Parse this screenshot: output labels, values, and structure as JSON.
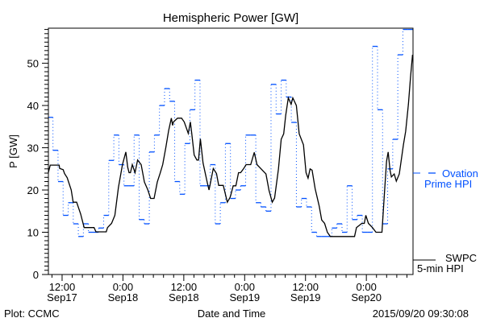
{
  "chart_data": {
    "type": "line",
    "title": "Hemispheric Power [GW]",
    "xlabel": "Date and Time",
    "ylabel": "P [GW]",
    "x_units": "hours since 2015/09/17 00:00",
    "xlim": [
      9.3,
      81.2
    ],
    "ylim": [
      0,
      58.3
    ],
    "yticks": [
      0,
      10,
      20,
      30,
      40,
      50
    ],
    "ytick_labels": [
      "0",
      "10",
      "20",
      "30",
      "40",
      "50"
    ],
    "xticks": [
      {
        "x": 12,
        "time": "12:00",
        "date": "Sep17"
      },
      {
        "x": 24,
        "time": "0:00",
        "date": "Sep18"
      },
      {
        "x": 36,
        "time": "12:00",
        "date": "Sep18"
      },
      {
        "x": 48,
        "time": "0:00",
        "date": "Sep19"
      },
      {
        "x": 60,
        "time": "12:00",
        "date": "Sep19"
      },
      {
        "x": 72,
        "time": "0:00",
        "date": "Sep20"
      }
    ],
    "grid": false,
    "legend_placement": "right-outside",
    "series": [
      {
        "name": "Ovation Prime HPI",
        "legend_line1": "Ovation",
        "legend_line2": "Prime HPI",
        "color": "#0050ff",
        "style": "step-hourly",
        "step_start": 9.2,
        "step_hours": 1,
        "values": [
          37.2,
          29.4,
          22,
          14,
          17,
          12,
          9,
          12,
          10,
          10,
          11,
          14,
          27,
          33,
          26,
          21,
          21,
          33,
          13,
          12,
          29,
          33,
          40,
          44,
          41,
          22,
          19,
          31,
          39,
          46,
          21,
          21,
          26,
          12,
          17,
          31,
          18,
          20,
          21,
          33,
          33,
          17,
          16,
          15,
          45,
          38,
          46,
          42,
          36,
          16,
          18,
          16,
          10,
          9,
          9,
          9,
          11,
          12,
          10,
          21,
          13,
          14,
          10,
          10,
          54,
          39,
          12,
          25,
          32,
          52,
          58,
          58
        ]
      },
      {
        "name": "SWPC 5-min HPI",
        "legend_line1": "SWPC",
        "legend_line2": "5-min HPI",
        "color": "#000000",
        "style": "line",
        "points": [
          [
            9.29,
            24.1
          ],
          [
            9.66,
            25.9
          ],
          [
            11.41,
            25.9
          ],
          [
            11.52,
            25.1
          ],
          [
            12.21,
            24.8
          ],
          [
            12.48,
            23.9
          ],
          [
            13.0,
            22.9
          ],
          [
            13.8,
            20.0
          ],
          [
            14.18,
            17.1
          ],
          [
            14.86,
            17.1
          ],
          [
            15.66,
            14.3
          ],
          [
            16.35,
            11.1
          ],
          [
            18.31,
            11.1
          ],
          [
            18.69,
            10.1
          ],
          [
            20.7,
            10.1
          ],
          [
            20.96,
            11.1
          ],
          [
            21.76,
            12.1
          ],
          [
            22.4,
            14
          ],
          [
            23.1,
            20.6
          ],
          [
            23.9,
            26.0
          ],
          [
            24.57,
            29.0
          ],
          [
            24.94,
            25.4
          ],
          [
            25.2,
            24.1
          ],
          [
            25.48,
            24.1
          ],
          [
            25.85,
            26.0
          ],
          [
            26.38,
            24.1
          ],
          [
            26.9,
            27.1
          ],
          [
            27.6,
            26.0
          ],
          [
            28.23,
            21.9
          ],
          [
            28.92,
            20.0
          ],
          [
            29.46,
            18.0
          ],
          [
            30.14,
            18.0
          ],
          [
            30.78,
            21.9
          ],
          [
            31.31,
            23.9
          ],
          [
            31.84,
            26.0
          ],
          [
            32.48,
            30.2
          ],
          [
            33.0,
            34.0
          ],
          [
            33.54,
            37.0
          ],
          [
            33.8,
            35.3
          ],
          [
            33.96,
            36.1
          ],
          [
            34.76,
            37.0
          ],
          [
            35.56,
            37.0
          ],
          [
            36.08,
            36.1
          ],
          [
            36.88,
            33.4
          ],
          [
            37.3,
            36.1
          ],
          [
            37.57,
            33.4
          ],
          [
            38.05,
            28.3
          ],
          [
            38.58,
            27.1
          ],
          [
            38.9,
            27.1
          ],
          [
            39.27,
            32.1
          ],
          [
            39.8,
            26.4
          ],
          [
            40.6,
            21.9
          ],
          [
            40.97,
            20.0
          ],
          [
            41.29,
            21.9
          ],
          [
            41.82,
            25.1
          ],
          [
            42.45,
            23.9
          ],
          [
            42.88,
            21.1
          ],
          [
            43.78,
            21.1
          ],
          [
            44.58,
            17.1
          ],
          [
            45.1,
            18.2
          ],
          [
            45.26,
            18.8
          ],
          [
            45.74,
            21.0
          ],
          [
            46.27,
            21.0
          ],
          [
            46.8,
            24.1
          ],
          [
            47.2,
            24.1
          ],
          [
            47.76,
            25.0
          ],
          [
            48.29,
            26.0
          ],
          [
            49.2,
            26.0
          ],
          [
            49.9,
            28.9
          ],
          [
            50.44,
            26.0
          ],
          [
            51.24,
            25.0
          ],
          [
            52.2,
            23.8
          ],
          [
            52.8,
            19.9
          ],
          [
            53.45,
            17.1
          ],
          [
            53.9,
            18.1
          ],
          [
            54.66,
            25.0
          ],
          [
            55.2,
            32.0
          ],
          [
            55.7,
            33.3
          ],
          [
            56.1,
            37.7
          ],
          [
            56.6,
            41.8
          ],
          [
            57.16,
            40.3
          ],
          [
            57.5,
            41.8
          ],
          [
            58.2,
            40.0
          ],
          [
            58.76,
            33.3
          ],
          [
            59.6,
            30.7
          ],
          [
            60.1,
            24.1
          ],
          [
            60.5,
            22.8
          ],
          [
            60.9,
            25.0
          ],
          [
            61.3,
            24.7
          ],
          [
            61.9,
            20.3
          ],
          [
            62.7,
            16.2
          ],
          [
            63.2,
            12.9
          ],
          [
            63.77,
            12.1
          ],
          [
            64.3,
            10.0
          ],
          [
            64.9,
            9.0
          ],
          [
            69.66,
            9.0
          ],
          [
            70.05,
            11.1
          ],
          [
            71.1,
            12.1
          ],
          [
            71.6,
            12.1
          ],
          [
            71.9,
            14.0
          ],
          [
            72.4,
            12.1
          ],
          [
            73.2,
            11.1
          ],
          [
            73.9,
            10.0
          ],
          [
            75.07,
            10.0
          ],
          [
            75.6,
            19.9
          ],
          [
            75.98,
            26.8
          ],
          [
            76.3,
            29.0
          ],
          [
            76.67,
            24.7
          ],
          [
            76.93,
            23.1
          ],
          [
            77.5,
            23.8
          ],
          [
            77.9,
            22.1
          ],
          [
            78.5,
            23.8
          ],
          [
            79.3,
            30.7
          ],
          [
            79.75,
            33.9
          ],
          [
            80.3,
            40.3
          ],
          [
            80.7,
            46.7
          ],
          [
            81.1,
            52.0
          ]
        ]
      }
    ]
  },
  "footer": {
    "plot_credit": "Plot: CCMC",
    "timestamp": "2015/09/20 09:30:08"
  }
}
